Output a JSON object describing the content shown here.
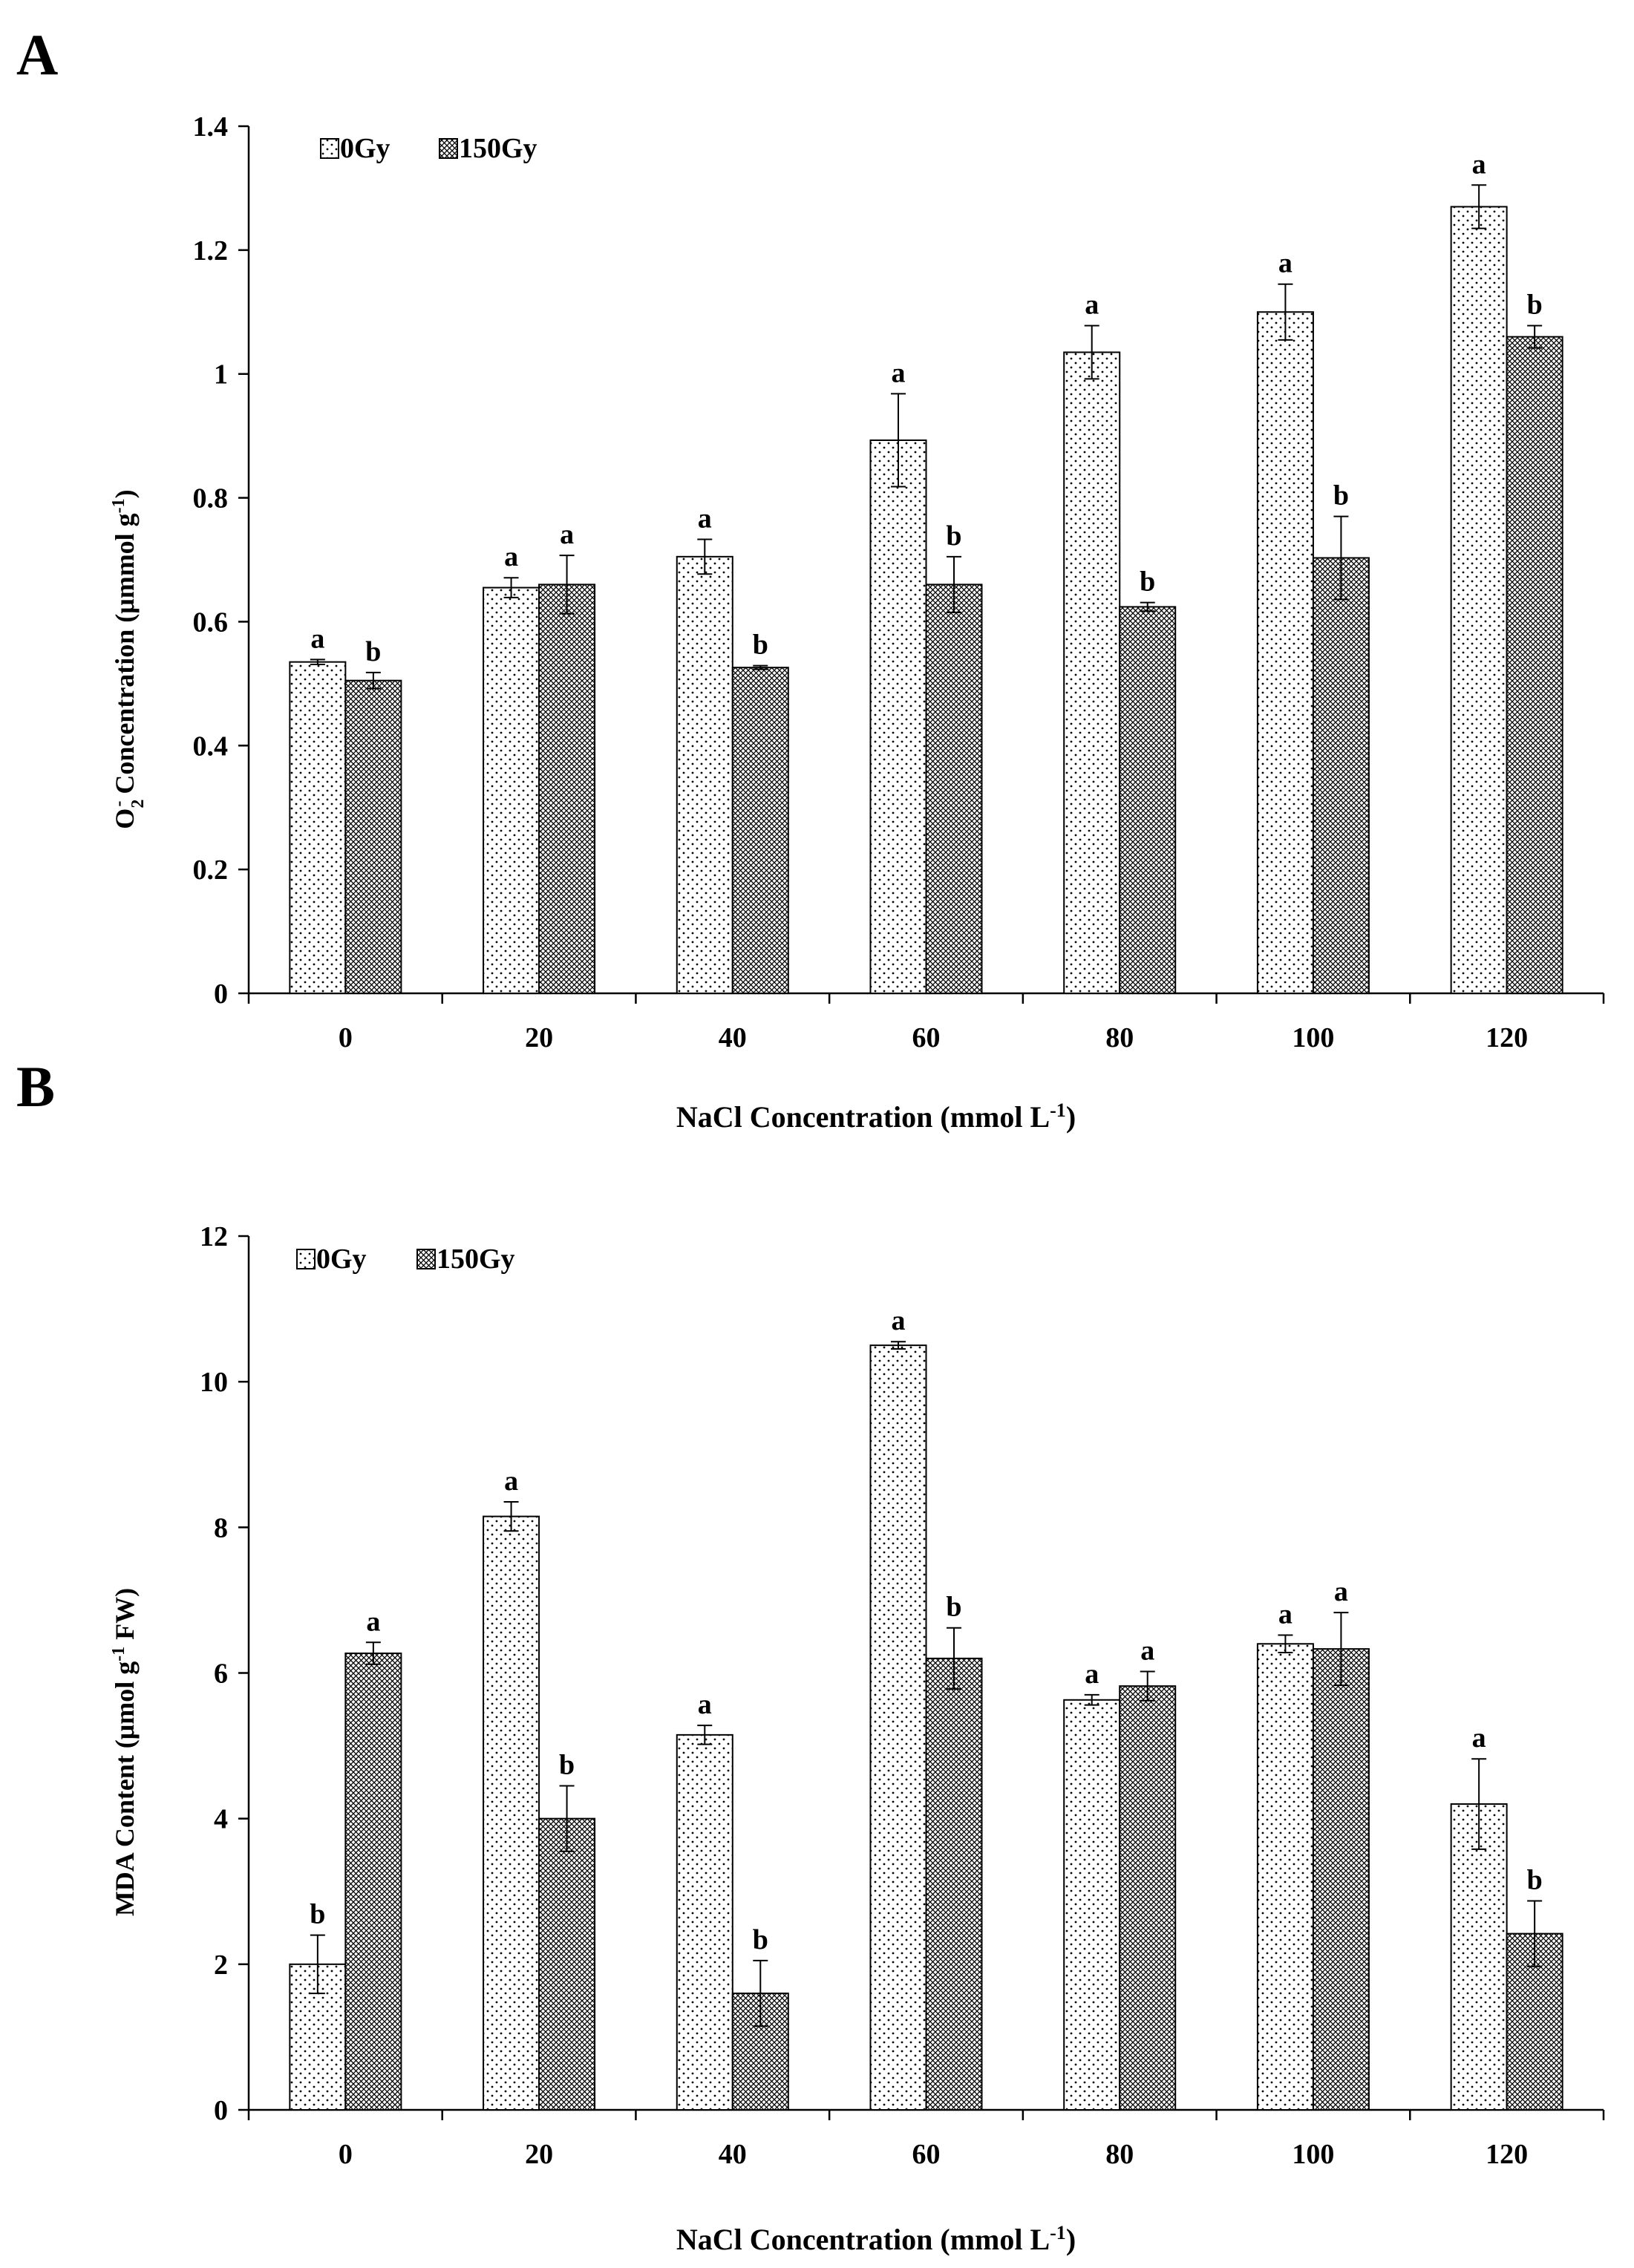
{
  "chart_data": [
    {
      "panel_label": "A",
      "type": "bar",
      "categories": [
        "0",
        "20",
        "40",
        "60",
        "80",
        "100",
        "120"
      ],
      "series": [
        {
          "name": "0Gy",
          "values": [
            0.535,
            0.655,
            0.705,
            0.893,
            1.035,
            1.1,
            1.27
          ],
          "errors": [
            0.004,
            0.016,
            0.028,
            0.075,
            0.043,
            0.045,
            0.035
          ],
          "letters": [
            "a",
            "a",
            "a",
            "a",
            "a",
            "a",
            "a"
          ]
        },
        {
          "name": "150Gy",
          "values": [
            0.505,
            0.66,
            0.526,
            0.66,
            0.624,
            0.703,
            1.06
          ],
          "errors": [
            0.013,
            0.047,
            0.003,
            0.045,
            0.007,
            0.067,
            0.018
          ],
          "letters": [
            "b",
            "a",
            "b",
            "b",
            "b",
            "b",
            "b"
          ]
        }
      ],
      "yticks": [
        "0",
        "0.2",
        "0.4",
        "0.6",
        "0.8",
        "1",
        "1.2",
        "1.4"
      ],
      "ylim": [
        0,
        1.4
      ],
      "ylabel": {
        "pre": "O",
        "sub": "2",
        "sup": "-",
        "mid": " Concentration (μmmol g",
        "sup2": "-1",
        "post": ")"
      },
      "xlabel": {
        "pre": "NaCl Concentration (mmol L",
        "sup": "-1",
        "post": ")"
      },
      "legend_position": "top-left",
      "grid": false
    },
    {
      "panel_label": "B",
      "type": "bar",
      "categories": [
        "0",
        "20",
        "40",
        "60",
        "80",
        "100",
        "120"
      ],
      "series": [
        {
          "name": "0Gy",
          "values": [
            2.0,
            8.15,
            5.15,
            10.5,
            5.63,
            6.4,
            4.2
          ],
          "errors": [
            0.4,
            0.2,
            0.13,
            0.05,
            0.07,
            0.12,
            0.62
          ],
          "letters": [
            "b",
            "a",
            "a",
            "a",
            "a",
            "a",
            "a"
          ]
        },
        {
          "name": "150Gy",
          "values": [
            6.27,
            4.0,
            1.6,
            6.2,
            5.82,
            6.33,
            2.42
          ],
          "errors": [
            0.15,
            0.45,
            0.45,
            0.42,
            0.2,
            0.5,
            0.45
          ],
          "letters": [
            "a",
            "b",
            "b",
            "b",
            "a",
            "a",
            "b"
          ]
        }
      ],
      "yticks": [
        "0",
        "2",
        "4",
        "6",
        "8",
        "10",
        "12"
      ],
      "ylim": [
        0,
        12
      ],
      "ylabel": {
        "pre": "MDA Content (μmol  g",
        "sup": "-1",
        "post": " FW)"
      },
      "xlabel": {
        "pre": "NaCl Concentration (mmol L",
        "sup": "-1",
        "post": ")"
      },
      "legend_position": "top-left",
      "grid": false
    }
  ]
}
